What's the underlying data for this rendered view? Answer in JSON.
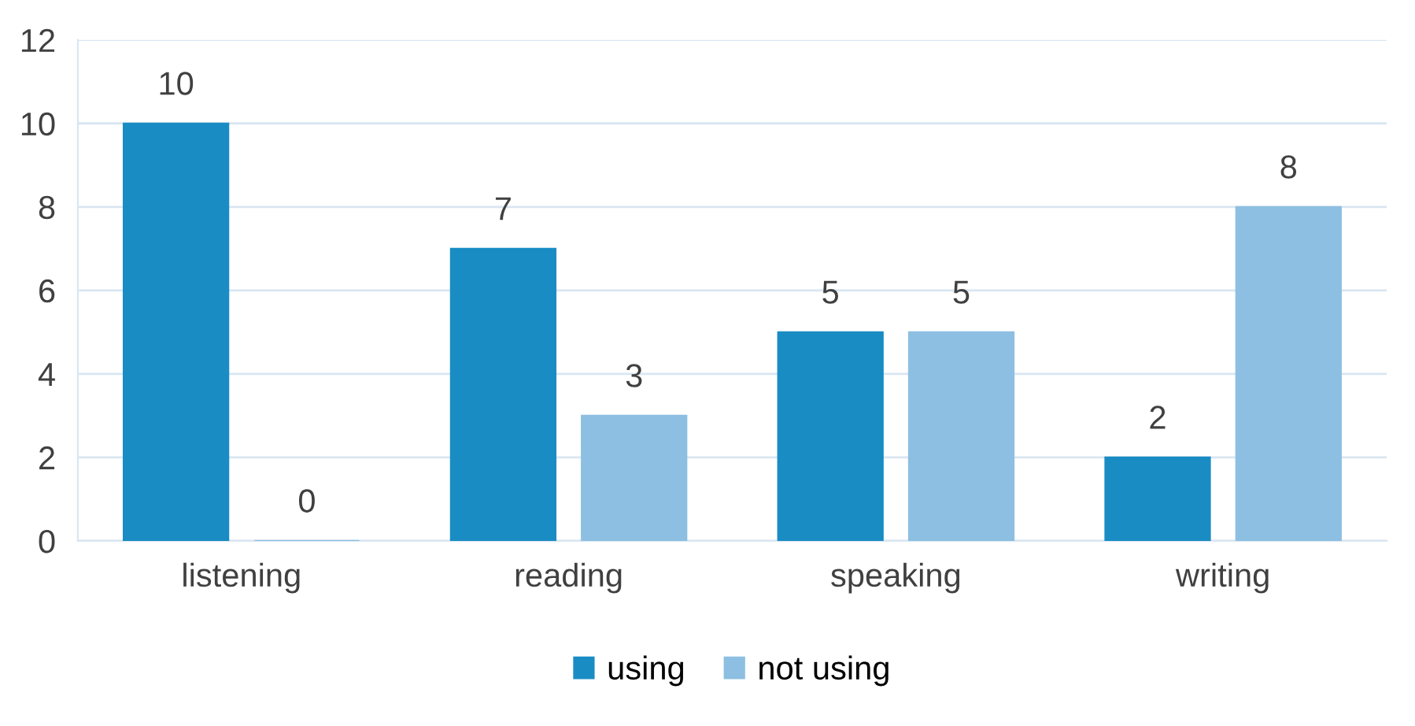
{
  "chart_data": {
    "type": "bar",
    "categories": [
      "listening",
      "reading",
      "speaking",
      "writing"
    ],
    "series": [
      {
        "name": "using",
        "color": "#1a8cc4",
        "values": [
          10,
          7,
          5,
          2
        ]
      },
      {
        "name": "not using",
        "color": "#8dbfe2",
        "values": [
          0,
          3,
          5,
          8
        ]
      }
    ],
    "ylim": [
      0,
      12
    ],
    "yticks": [
      0,
      2,
      4,
      6,
      8,
      10,
      12
    ],
    "grid": "y",
    "legend": "bottom",
    "data_labels": true
  }
}
